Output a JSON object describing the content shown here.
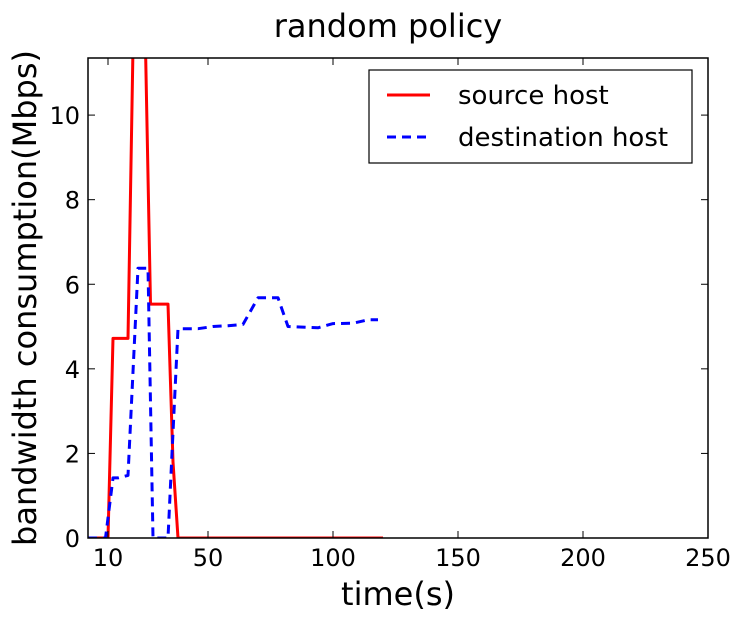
{
  "chart_data": {
    "type": "line",
    "title": "random policy",
    "xlabel": "time(s)",
    "ylabel": "bandwidth consumption(Mbps)",
    "xlim": [
      2,
      250
    ],
    "ylim": [
      0,
      11.35
    ],
    "xticks": [
      10,
      50,
      100,
      150,
      200,
      250
    ],
    "yticks": [
      0,
      2,
      4,
      6,
      8,
      10
    ],
    "grid": false,
    "legend_position": "top-right",
    "series": [
      {
        "name": "source host",
        "color": "#ff0000",
        "style": "solid",
        "x": [
          2,
          10,
          12,
          18,
          20,
          25,
          27,
          32,
          34,
          36,
          38,
          40,
          120
        ],
        "y": [
          0,
          0,
          4.72,
          4.72,
          11.6,
          11.6,
          5.53,
          5.53,
          5.53,
          1.8,
          0,
          0,
          0
        ]
      },
      {
        "name": "destination host",
        "color": "#0000ff",
        "style": "dashed",
        "x": [
          2,
          9,
          12,
          14,
          18,
          22,
          26,
          28,
          32,
          34,
          36,
          38,
          46,
          52,
          58,
          64,
          70,
          78,
          82,
          94,
          100,
          108,
          114,
          118
        ],
        "y": [
          0,
          0,
          1.42,
          1.42,
          1.48,
          6.38,
          6.38,
          0,
          0,
          0,
          2.5,
          4.95,
          4.95,
          5.0,
          5.02,
          5.05,
          5.68,
          5.68,
          5.0,
          4.97,
          5.07,
          5.08,
          5.16,
          5.16
        ]
      }
    ]
  }
}
